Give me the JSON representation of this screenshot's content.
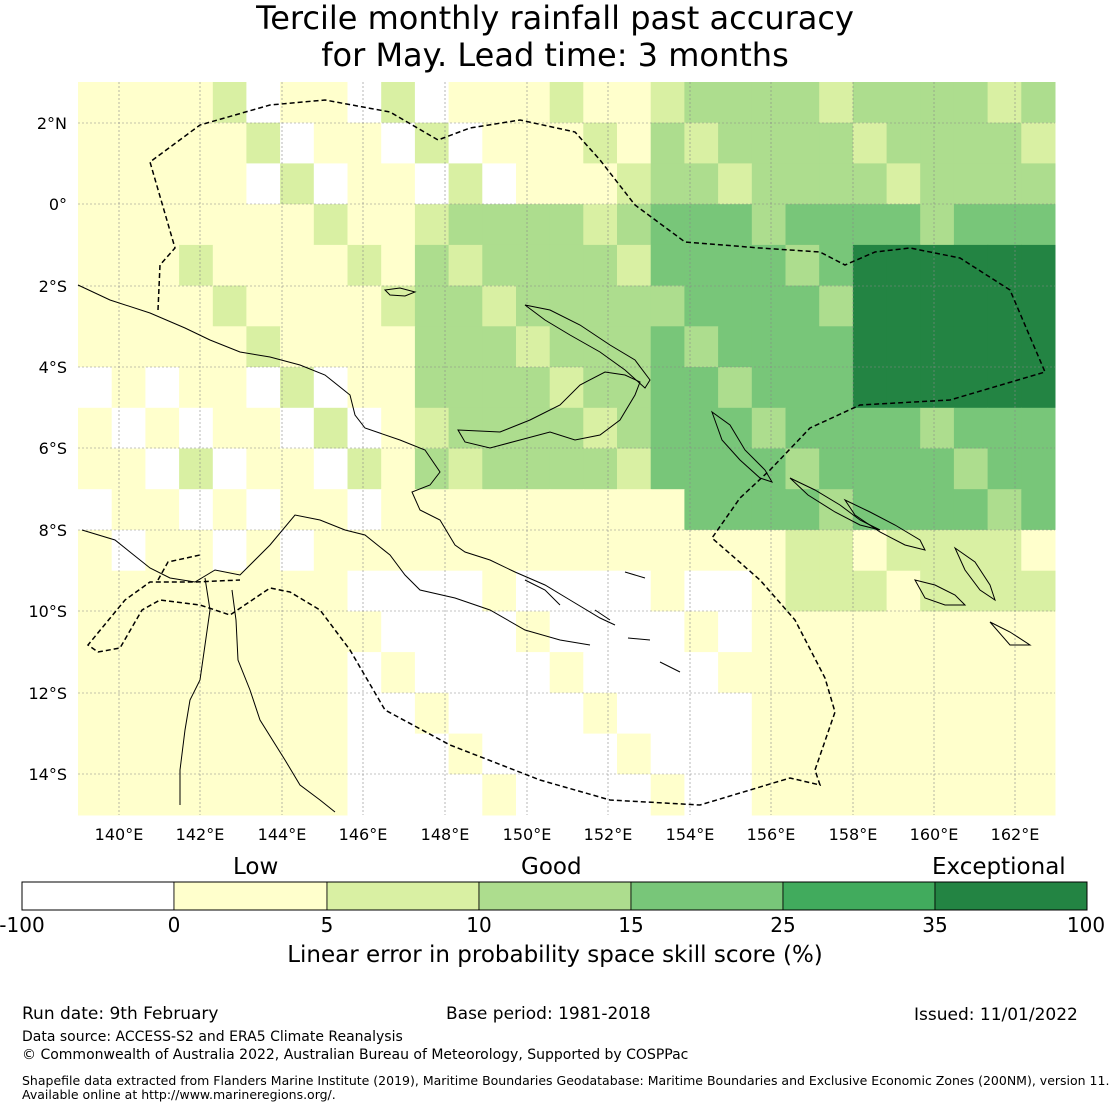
{
  "title": {
    "line1": "Tercile monthly rainfall past accuracy",
    "line2": "for May. Lead time: 3 months"
  },
  "map": {
    "lon_ticks": [
      "140°E",
      "142°E",
      "144°E",
      "146°E",
      "148°E",
      "150°E",
      "152°E",
      "154°E",
      "156°E",
      "158°E",
      "160°E",
      "162°E"
    ],
    "lat_ticks": [
      "2°N",
      "0°",
      "2°S",
      "4°S",
      "6°S",
      "8°S",
      "10°S",
      "12°S",
      "14°S"
    ],
    "colors": {
      "no_skill": "#ffffff",
      "c0_5": "#ffffcc",
      "c5_10": "#d9f0a3",
      "c10_15": "#addd8e",
      "c15_25": "#78c679",
      "c25_35": "#41ab5d",
      "c35_100": "#238443",
      "boundary": "#000000",
      "coast": "#000000"
    }
  },
  "colorbar": {
    "categories": [
      "Low",
      "Good",
      "Exceptional"
    ],
    "ticks": [
      "-100",
      "0",
      "5",
      "10",
      "15",
      "25",
      "35",
      "100"
    ],
    "label": "Linear error in probability space skill score (%)"
  },
  "footer": {
    "run_date": "Run date: 9th February",
    "base_period": "Base period: 1981-2018",
    "issued": "Issued: 11/01/2022",
    "data_source": "Data source: ACCESS-S2 and ERA5 Climate Reanalysis",
    "copyright": "© Commonwealth of Australia 2022, Australian Bureau of Meteorology, Supported by COSPPac",
    "shapefile1": "Shapefile data extracted from Flanders Marine Institute (2019), Maritime Boundaries Geodatabase: Maritime Boundaries and Exclusive Economic Zones (200NM), version 11.",
    "shapefile2": "Available online at http://www.marineregions.org/."
  }
}
